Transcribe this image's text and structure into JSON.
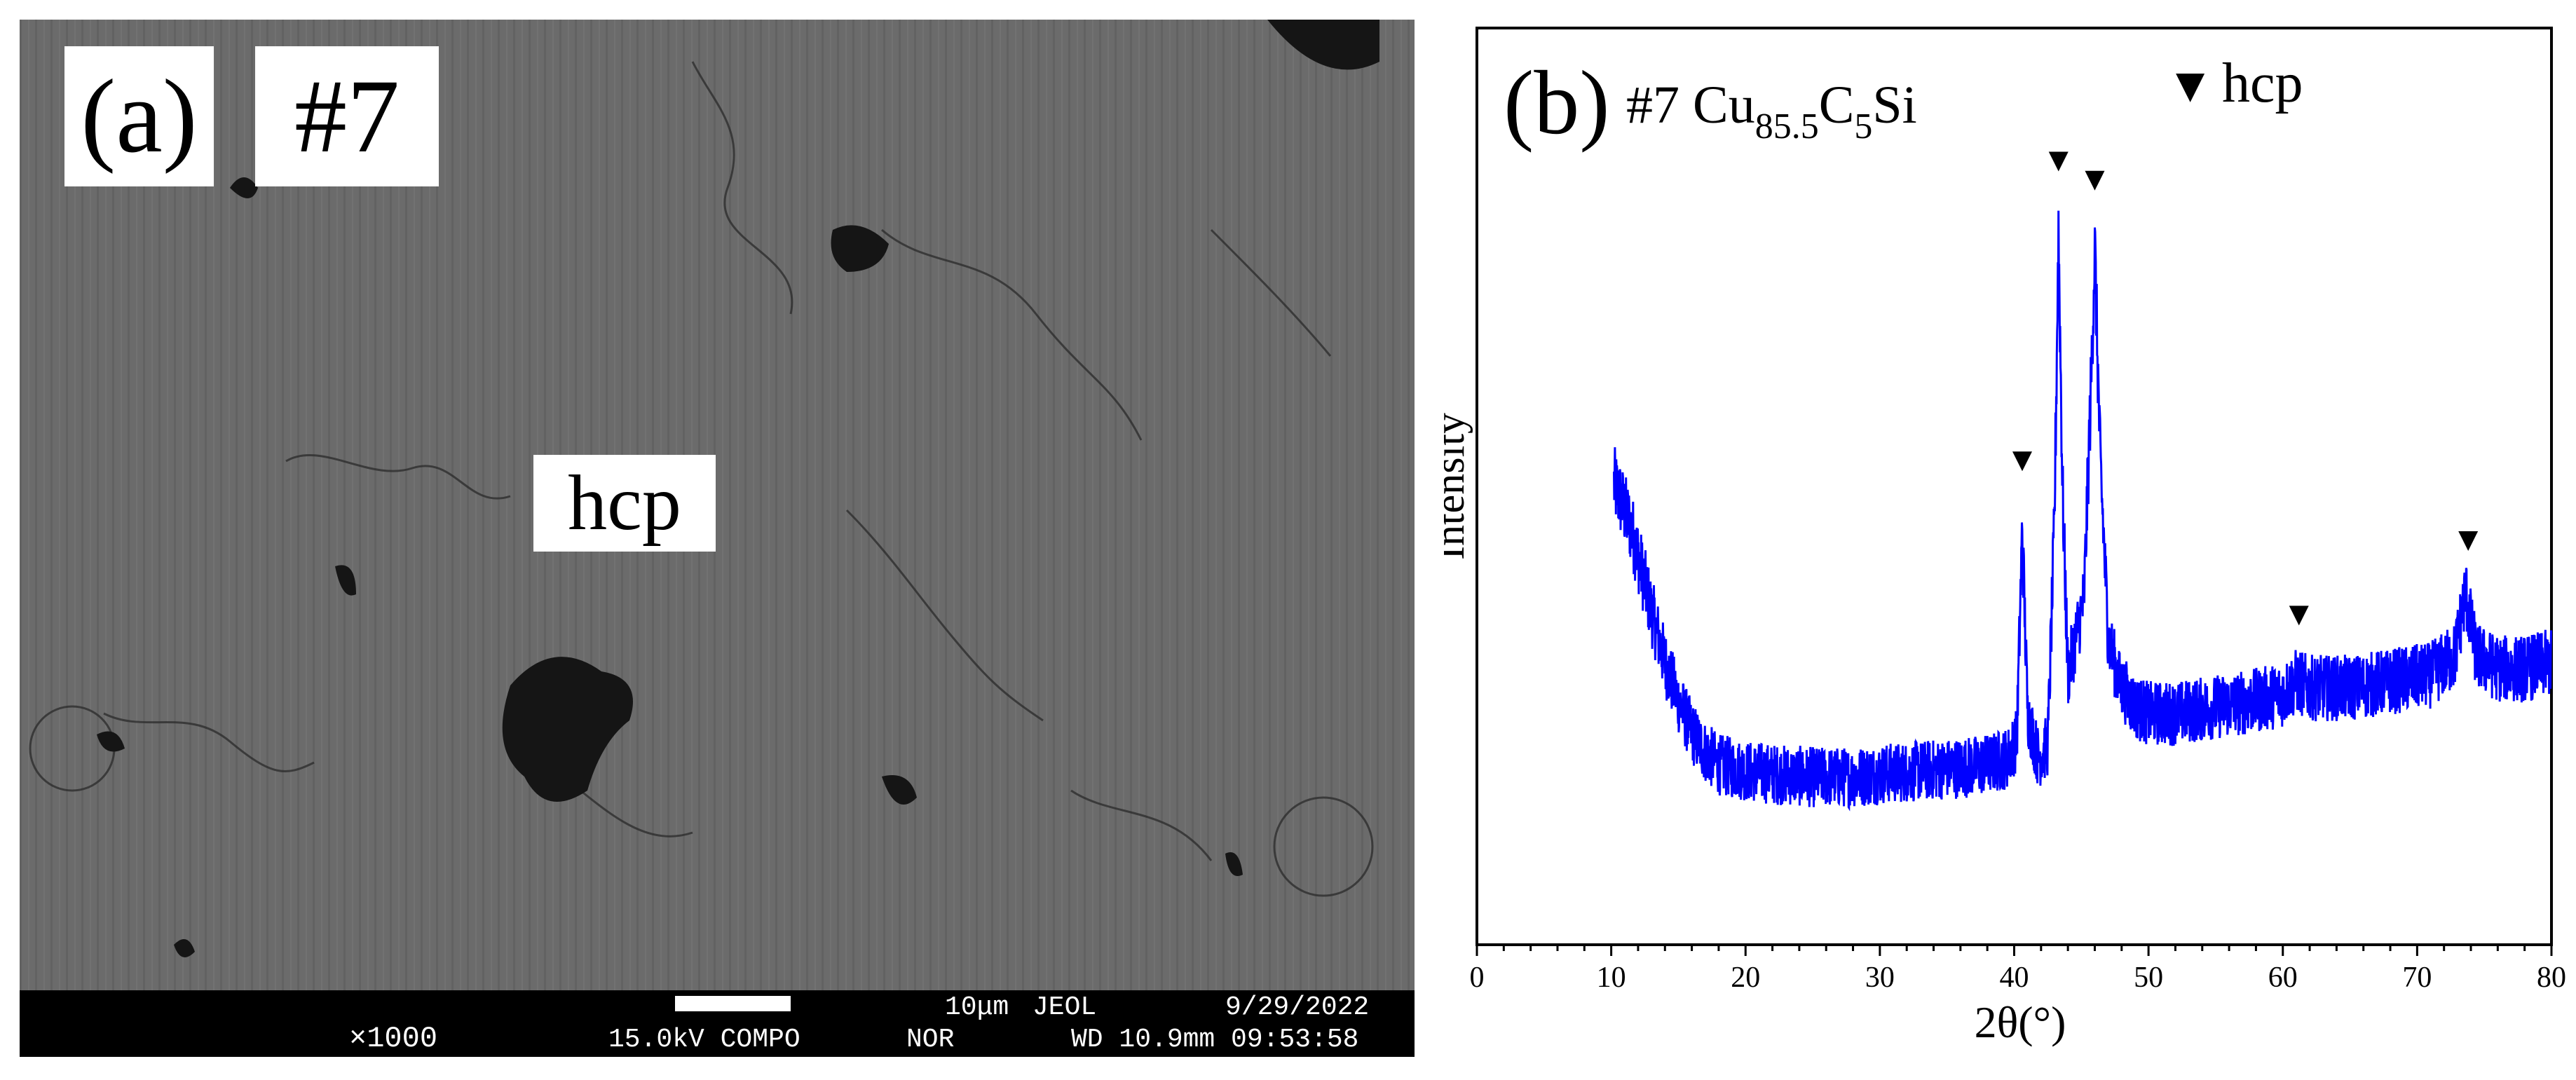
{
  "panel_a": {
    "panel_label": "(a)",
    "sample_label": "#7",
    "phase_label": "hcp",
    "databar": {
      "magnification": "×1000",
      "scale_text": "10μm",
      "maker": "JEOL",
      "date": "9/29/2022",
      "voltage_mode": "15.0kV COMPO",
      "mode2": "NOR",
      "wd_time": "WD 10.9mm 09:53:58"
    }
  },
  "panel_b": {
    "panel_label": "(b)",
    "sample": "#7 Cu",
    "sub1": "85.5",
    "mid": "C",
    "sub2": "5",
    "end": "Si",
    "legend_marker": "▼",
    "legend_text": "hcp"
  },
  "colors": {
    "line": "#0000ff",
    "sem_bg": "#6b6b6b",
    "databar": "#000000"
  },
  "chart_data": {
    "type": "line",
    "title": "",
    "xlabel": "2θ(°)",
    "ylabel": "Intensity",
    "xlim": [
      0,
      80
    ],
    "ylim": [
      0,
      1
    ],
    "xticks": [
      0,
      10,
      20,
      30,
      40,
      50,
      60,
      70,
      80
    ],
    "y_ticks_shown": false,
    "series": [
      {
        "color": "#0000ff",
        "x": [
          10.2,
          10.8,
          11.5,
          12.2,
          13.0,
          14.0,
          15.0,
          16.0,
          17.0,
          18.0,
          20.0,
          22.0,
          25.0,
          28.0,
          30.0,
          33.0,
          36.0,
          38.0,
          39.5,
          40.2,
          40.6,
          41.0,
          41.8,
          42.5,
          43.0,
          43.3,
          43.6,
          44.0,
          44.6,
          45.2,
          45.7,
          46.0,
          46.4,
          47.0,
          47.8,
          49.0,
          50.0,
          52.0,
          55.0,
          58.0,
          60.0,
          61.0,
          62.0,
          65.0,
          68.0,
          71.0,
          72.8,
          73.6,
          74.4,
          76.0,
          78.0,
          80.0
        ],
        "y": [
          0.56,
          0.53,
          0.49,
          0.43,
          0.36,
          0.28,
          0.22,
          0.17,
          0.14,
          0.12,
          0.11,
          0.105,
          0.1,
          0.1,
          0.105,
          0.11,
          0.115,
          0.12,
          0.13,
          0.16,
          0.49,
          0.2,
          0.13,
          0.15,
          0.5,
          0.96,
          0.55,
          0.26,
          0.32,
          0.38,
          0.7,
          0.93,
          0.6,
          0.32,
          0.25,
          0.21,
          0.2,
          0.2,
          0.21,
          0.22,
          0.23,
          0.25,
          0.24,
          0.24,
          0.25,
          0.26,
          0.29,
          0.39,
          0.29,
          0.27,
          0.27,
          0.28
        ]
      }
    ],
    "peak_markers_x": [
      40.6,
      43.3,
      46.0,
      61.2,
      73.8
    ]
  }
}
